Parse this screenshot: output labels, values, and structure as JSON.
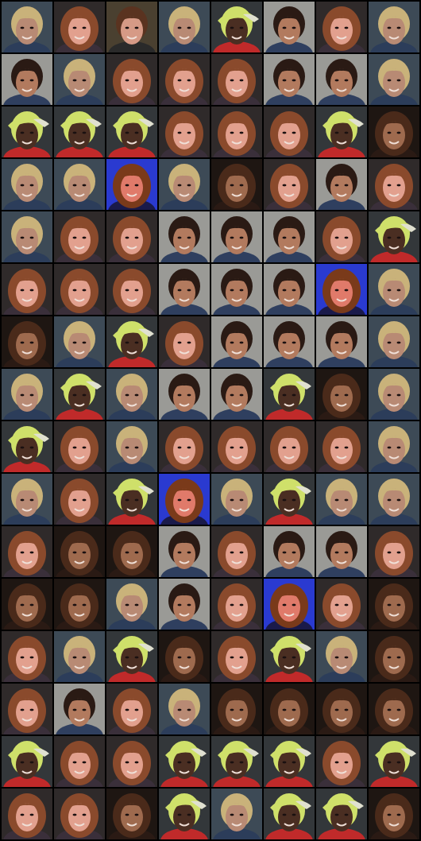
{
  "grid": {
    "rows": 16,
    "cols": 8,
    "tile_kinds": [
      "blond",
      "longhair",
      "brunette",
      "blond",
      "cap",
      "darkhair",
      "longhair",
      "blond",
      "darkhair",
      "blond",
      "longhair",
      "longhair",
      "longhair",
      "darkhair",
      "darkhair",
      "blond",
      "cap",
      "cap",
      "cap",
      "longhair",
      "longhair",
      "longhair",
      "cap",
      "curly",
      "blond",
      "blond",
      "blue",
      "blond",
      "curly",
      "longhair",
      "darkhair",
      "longhair",
      "blond",
      "longhair",
      "longhair",
      "darkhair",
      "darkhair",
      "darkhair",
      "longhair",
      "cap",
      "longhair",
      "longhair",
      "longhair",
      "darkhair",
      "darkhair",
      "darkhair",
      "blue",
      "blond",
      "curly",
      "blond",
      "cap",
      "longhair",
      "darkhair",
      "darkhair",
      "darkhair",
      "blond",
      "blond",
      "cap",
      "blond",
      "darkhair",
      "darkhair",
      "cap",
      "curly",
      "blond",
      "cap",
      "longhair",
      "blond",
      "longhair",
      "longhair",
      "longhair",
      "longhair",
      "blond",
      "blond",
      "longhair",
      "cap",
      "blue",
      "blond",
      "cap",
      "blond",
      "blond",
      "longhair",
      "curly",
      "curly",
      "darkhair",
      "longhair",
      "darkhair",
      "darkhair",
      "longhair",
      "curly",
      "curly",
      "blond",
      "darkhair",
      "longhair",
      "blue",
      "longhair",
      "curly",
      "longhair",
      "blond",
      "cap",
      "curly",
      "longhair",
      "cap",
      "blond",
      "curly",
      "longhair",
      "darkhair",
      "longhair",
      "blond",
      "curly",
      "curly",
      "curly",
      "curly",
      "cap",
      "longhair",
      "longhair",
      "cap",
      "cap",
      "cap",
      "longhair",
      "cap",
      "longhair",
      "longhair",
      "curly",
      "cap",
      "blond",
      "cap",
      "cap",
      "curly"
    ],
    "palettes": {
      "blond": {
        "bg": "#3d4a56",
        "hair": "#c9b27a",
        "skin": "#b88a74",
        "shirt": "#2c3d5a"
      },
      "longhair": {
        "bg": "#2f2a2a",
        "hair": "#8a4a2c",
        "skin": "#e2a08e",
        "shirt": "#3a2f3a"
      },
      "brunette": {
        "bg": "#4a4030",
        "hair": "#5a3320",
        "skin": "#d69a86",
        "shirt": "#2a2a2a"
      },
      "cap": {
        "bg": "#33373a",
        "hair": "#cfe06a",
        "skin": "#4a2e22",
        "shirt": "#c02a2a"
      },
      "darkhair": {
        "bg": "#9a9a96",
        "hair": "#2a1a14",
        "skin": "#b27a5e",
        "shirt": "#2f3f5f"
      },
      "curly": {
        "bg": "#1e1612",
        "hair": "#4a2a1a",
        "skin": "#9e6a4e",
        "shirt": "#2a1a14"
      },
      "blue": {
        "bg": "#2a3ad0",
        "hair": "#7a3a1a",
        "skin": "#e07a6a",
        "shirt": "#1a1a4a"
      }
    }
  }
}
